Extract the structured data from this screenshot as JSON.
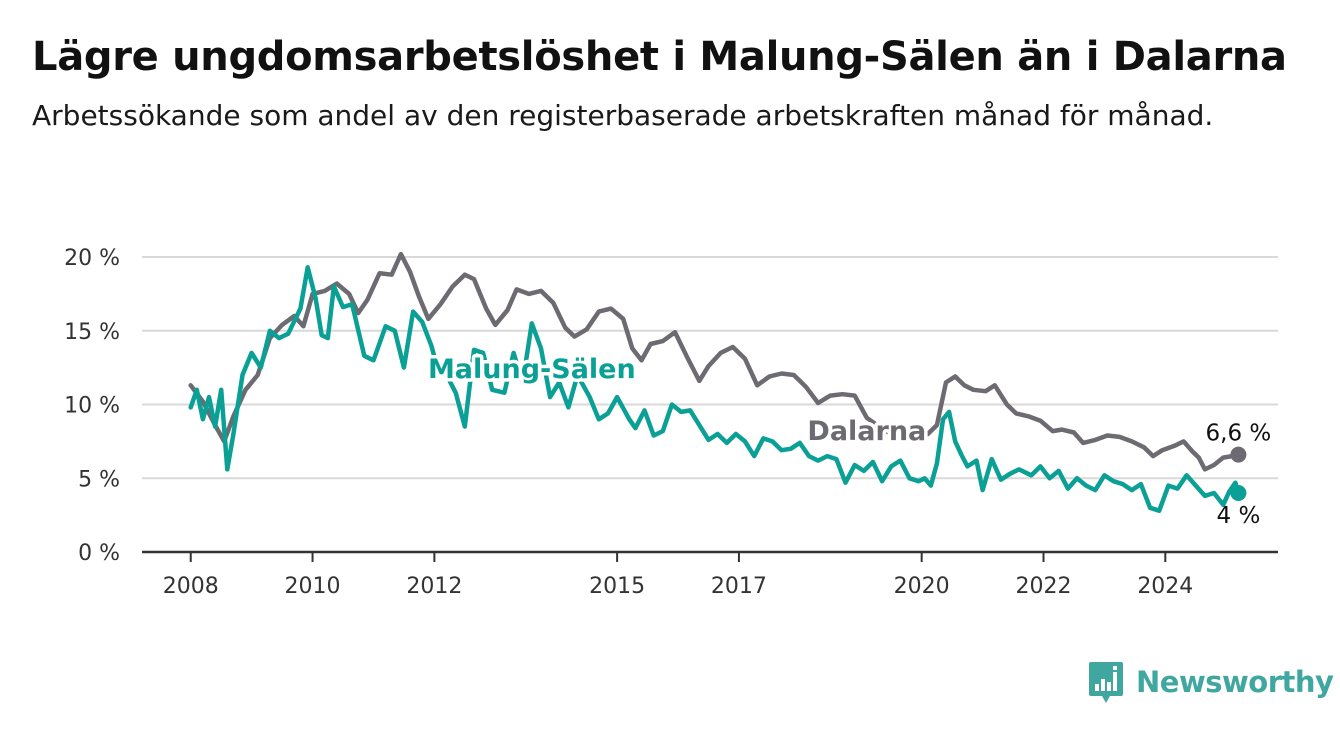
{
  "header": {
    "title": "Lägre ungdomsarbetslöshet i Malung-Sälen än i Dalarna",
    "subtitle": "Arbetssökande som andel av den registerbaserade arbetskraften månad för månad."
  },
  "brand": {
    "name": "Newsworthy",
    "icon": "bar-chart-logo-icon",
    "color": "#3fa7a0"
  },
  "chart_data": {
    "type": "line",
    "x_unit": "year",
    "xlim": [
      2007.2,
      2025.85
    ],
    "ylim": [
      0,
      20
    ],
    "y_ticks": [
      0,
      5,
      10,
      15,
      20
    ],
    "y_tick_labels": [
      "0 %",
      "5 %",
      "10 %",
      "15 %",
      "20 %"
    ],
    "x_ticks": [
      2008,
      2010,
      2012,
      2015,
      2017,
      2020,
      2022,
      2024
    ],
    "x_tick_labels": [
      "2008",
      "2010",
      "2012",
      "2015",
      "2017",
      "2020",
      "2022",
      "2024"
    ],
    "grid": true,
    "series": [
      {
        "name": "Dalarna",
        "color": "#6d6a72",
        "end_label": "6,6 %",
        "points": [
          [
            2008.0,
            11.3
          ],
          [
            2008.2,
            10.2
          ],
          [
            2008.4,
            8.6
          ],
          [
            2008.55,
            7.5
          ],
          [
            2008.7,
            9.2
          ],
          [
            2008.9,
            11.0
          ],
          [
            2009.1,
            12.0
          ],
          [
            2009.3,
            14.5
          ],
          [
            2009.5,
            15.4
          ],
          [
            2009.7,
            16.0
          ],
          [
            2009.85,
            15.3
          ],
          [
            2010.0,
            17.5
          ],
          [
            2010.2,
            17.7
          ],
          [
            2010.4,
            18.2
          ],
          [
            2010.6,
            17.5
          ],
          [
            2010.75,
            16.2
          ],
          [
            2010.9,
            17.1
          ],
          [
            2011.1,
            18.9
          ],
          [
            2011.3,
            18.8
          ],
          [
            2011.45,
            20.2
          ],
          [
            2011.6,
            19.0
          ],
          [
            2011.75,
            17.3
          ],
          [
            2011.9,
            15.8
          ],
          [
            2012.1,
            16.8
          ],
          [
            2012.3,
            18.0
          ],
          [
            2012.5,
            18.8
          ],
          [
            2012.65,
            18.5
          ],
          [
            2012.85,
            16.5
          ],
          [
            2013.0,
            15.4
          ],
          [
            2013.2,
            16.4
          ],
          [
            2013.35,
            17.8
          ],
          [
            2013.55,
            17.5
          ],
          [
            2013.75,
            17.7
          ],
          [
            2013.95,
            16.9
          ],
          [
            2014.15,
            15.2
          ],
          [
            2014.3,
            14.6
          ],
          [
            2014.5,
            15.1
          ],
          [
            2014.7,
            16.3
          ],
          [
            2014.9,
            16.5
          ],
          [
            2015.1,
            15.8
          ],
          [
            2015.25,
            13.8
          ],
          [
            2015.4,
            13.0
          ],
          [
            2015.55,
            14.1
          ],
          [
            2015.75,
            14.3
          ],
          [
            2015.95,
            14.9
          ],
          [
            2016.15,
            13.2
          ],
          [
            2016.35,
            11.6
          ],
          [
            2016.5,
            12.6
          ],
          [
            2016.7,
            13.5
          ],
          [
            2016.9,
            13.9
          ],
          [
            2017.1,
            13.1
          ],
          [
            2017.3,
            11.3
          ],
          [
            2017.5,
            11.9
          ],
          [
            2017.7,
            12.1
          ],
          [
            2017.9,
            12.0
          ],
          [
            2018.1,
            11.2
          ],
          [
            2018.3,
            10.1
          ],
          [
            2018.5,
            10.6
          ],
          [
            2018.7,
            10.7
          ],
          [
            2018.9,
            10.6
          ],
          [
            2019.1,
            9.1
          ],
          [
            2019.3,
            8.5
          ],
          [
            2019.5,
            8.0
          ],
          [
            2019.7,
            8.1
          ],
          [
            2019.9,
            7.8
          ],
          [
            2020.1,
            8.0
          ],
          [
            2020.25,
            8.6
          ],
          [
            2020.4,
            11.5
          ],
          [
            2020.55,
            11.9
          ],
          [
            2020.7,
            11.3
          ],
          [
            2020.85,
            11.0
          ],
          [
            2021.05,
            10.9
          ],
          [
            2021.2,
            11.3
          ],
          [
            2021.4,
            10.0
          ],
          [
            2021.55,
            9.4
          ],
          [
            2021.75,
            9.2
          ],
          [
            2021.95,
            8.9
          ],
          [
            2022.15,
            8.2
          ],
          [
            2022.3,
            8.3
          ],
          [
            2022.5,
            8.1
          ],
          [
            2022.65,
            7.4
          ],
          [
            2022.85,
            7.6
          ],
          [
            2023.05,
            7.9
          ],
          [
            2023.25,
            7.8
          ],
          [
            2023.45,
            7.5
          ],
          [
            2023.65,
            7.1
          ],
          [
            2023.8,
            6.5
          ],
          [
            2023.95,
            6.9
          ],
          [
            2024.15,
            7.2
          ],
          [
            2024.3,
            7.5
          ],
          [
            2024.45,
            6.8
          ],
          [
            2024.55,
            6.4
          ],
          [
            2024.65,
            5.6
          ],
          [
            2024.8,
            5.9
          ],
          [
            2024.95,
            6.4
          ],
          [
            2025.1,
            6.5
          ],
          [
            2025.2,
            6.6
          ]
        ]
      },
      {
        "name": "Malung-Sälen",
        "color": "#0aa095",
        "end_label": "4 %",
        "points": [
          [
            2008.0,
            9.8
          ],
          [
            2008.1,
            11.0
          ],
          [
            2008.2,
            9.0
          ],
          [
            2008.3,
            10.5
          ],
          [
            2008.4,
            8.5
          ],
          [
            2008.5,
            11.0
          ],
          [
            2008.6,
            5.6
          ],
          [
            2008.7,
            8.0
          ],
          [
            2008.85,
            12.0
          ],
          [
            2009.0,
            13.5
          ],
          [
            2009.15,
            12.5
          ],
          [
            2009.3,
            15.0
          ],
          [
            2009.45,
            14.5
          ],
          [
            2009.6,
            14.8
          ],
          [
            2009.8,
            16.5
          ],
          [
            2009.92,
            19.3
          ],
          [
            2010.05,
            17.2
          ],
          [
            2010.15,
            14.7
          ],
          [
            2010.25,
            14.5
          ],
          [
            2010.35,
            18.0
          ],
          [
            2010.5,
            16.6
          ],
          [
            2010.65,
            16.8
          ],
          [
            2010.85,
            13.3
          ],
          [
            2011.0,
            13.0
          ],
          [
            2011.2,
            15.3
          ],
          [
            2011.35,
            15.0
          ],
          [
            2011.5,
            12.5
          ],
          [
            2011.65,
            16.3
          ],
          [
            2011.8,
            15.6
          ],
          [
            2011.95,
            14.0
          ],
          [
            2012.05,
            12.5
          ],
          [
            2012.2,
            12.0
          ],
          [
            2012.35,
            10.8
          ],
          [
            2012.5,
            8.5
          ],
          [
            2012.65,
            13.7
          ],
          [
            2012.8,
            13.5
          ],
          [
            2012.95,
            11.0
          ],
          [
            2013.15,
            10.8
          ],
          [
            2013.3,
            13.5
          ],
          [
            2013.45,
            11.5
          ],
          [
            2013.6,
            15.5
          ],
          [
            2013.75,
            13.8
          ],
          [
            2013.9,
            10.5
          ],
          [
            2014.05,
            11.5
          ],
          [
            2014.2,
            9.8
          ],
          [
            2014.35,
            12.0
          ],
          [
            2014.55,
            10.5
          ],
          [
            2014.7,
            9.0
          ],
          [
            2014.85,
            9.4
          ],
          [
            2015.0,
            10.5
          ],
          [
            2015.2,
            9.0
          ],
          [
            2015.3,
            8.4
          ],
          [
            2015.45,
            9.6
          ],
          [
            2015.6,
            7.9
          ],
          [
            2015.75,
            8.2
          ],
          [
            2015.9,
            10.0
          ],
          [
            2016.05,
            9.5
          ],
          [
            2016.2,
            9.6
          ],
          [
            2016.35,
            8.6
          ],
          [
            2016.5,
            7.6
          ],
          [
            2016.65,
            8.0
          ],
          [
            2016.8,
            7.4
          ],
          [
            2016.95,
            8.0
          ],
          [
            2017.1,
            7.5
          ],
          [
            2017.25,
            6.5
          ],
          [
            2017.4,
            7.7
          ],
          [
            2017.55,
            7.5
          ],
          [
            2017.7,
            6.9
          ],
          [
            2017.85,
            7.0
          ],
          [
            2018.0,
            7.4
          ],
          [
            2018.15,
            6.5
          ],
          [
            2018.3,
            6.2
          ],
          [
            2018.45,
            6.5
          ],
          [
            2018.6,
            6.3
          ],
          [
            2018.75,
            4.7
          ],
          [
            2018.9,
            5.9
          ],
          [
            2019.05,
            5.5
          ],
          [
            2019.2,
            6.1
          ],
          [
            2019.35,
            4.8
          ],
          [
            2019.5,
            5.8
          ],
          [
            2019.65,
            6.2
          ],
          [
            2019.8,
            5.0
          ],
          [
            2019.95,
            4.8
          ],
          [
            2020.05,
            5.0
          ],
          [
            2020.15,
            4.5
          ],
          [
            2020.25,
            6.0
          ],
          [
            2020.35,
            9.0
          ],
          [
            2020.45,
            9.5
          ],
          [
            2020.55,
            7.5
          ],
          [
            2020.65,
            6.6
          ],
          [
            2020.75,
            5.8
          ],
          [
            2020.9,
            6.2
          ],
          [
            2021.0,
            4.2
          ],
          [
            2021.15,
            6.3
          ],
          [
            2021.3,
            4.9
          ],
          [
            2021.45,
            5.3
          ],
          [
            2021.6,
            5.6
          ],
          [
            2021.8,
            5.2
          ],
          [
            2021.95,
            5.8
          ],
          [
            2022.1,
            5.0
          ],
          [
            2022.25,
            5.5
          ],
          [
            2022.4,
            4.3
          ],
          [
            2022.55,
            5.0
          ],
          [
            2022.7,
            4.5
          ],
          [
            2022.85,
            4.2
          ],
          [
            2023.0,
            5.2
          ],
          [
            2023.15,
            4.8
          ],
          [
            2023.3,
            4.6
          ],
          [
            2023.45,
            4.2
          ],
          [
            2023.6,
            4.6
          ],
          [
            2023.75,
            3.0
          ],
          [
            2023.9,
            2.8
          ],
          [
            2024.05,
            4.5
          ],
          [
            2024.2,
            4.3
          ],
          [
            2024.35,
            5.2
          ],
          [
            2024.5,
            4.5
          ],
          [
            2024.65,
            3.8
          ],
          [
            2024.8,
            4.0
          ],
          [
            2024.95,
            3.2
          ],
          [
            2025.05,
            4.1
          ],
          [
            2025.15,
            4.7
          ],
          [
            2025.2,
            4.0
          ]
        ]
      }
    ]
  }
}
